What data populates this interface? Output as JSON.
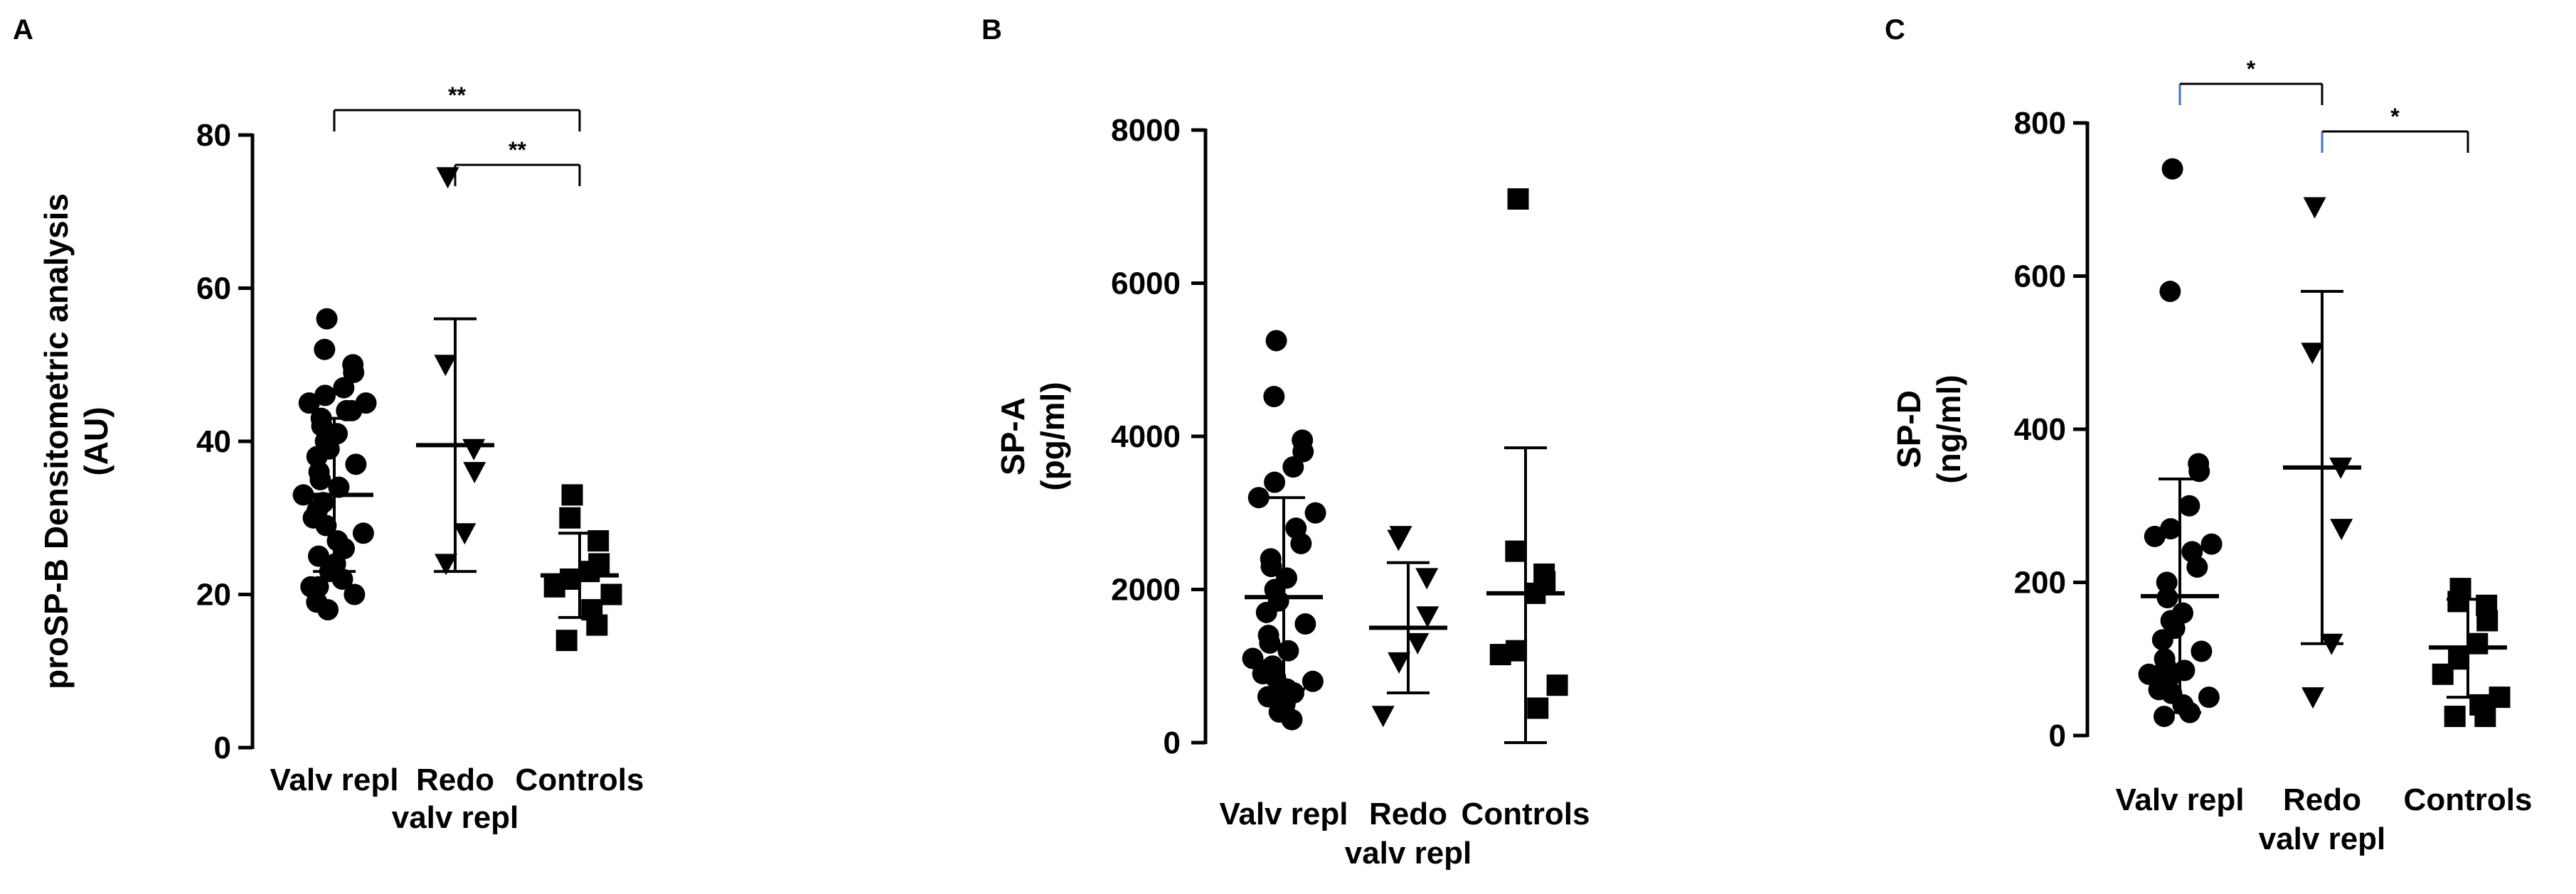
{
  "chart_data": [
    {
      "panel": "A",
      "type": "scatter",
      "ylabel_lines": [
        "proSP-B Densitometric analysis",
        "(AU)"
      ],
      "ylim": [
        0,
        80
      ],
      "yticks": [
        0,
        20,
        40,
        60,
        80
      ],
      "categories": [
        {
          "label_lines": [
            "Valv repl"
          ],
          "marker": "circle",
          "values": [
            56,
            52,
            50,
            49,
            47,
            46,
            45,
            45,
            44,
            44,
            43,
            42,
            41,
            40,
            39,
            38,
            37,
            36,
            35,
            34,
            33,
            32,
            31,
            30,
            29,
            28,
            27,
            26,
            25,
            24,
            23,
            22,
            21,
            21,
            20,
            19,
            18
          ],
          "mean": 33,
          "sd_low": 23,
          "sd_high": 43
        },
        {
          "label_lines": [
            "Redo",
            "valv repl"
          ],
          "marker": "triangle-down",
          "values": [
            74.5,
            50,
            39,
            36,
            28,
            24
          ],
          "mean": 39.5,
          "sd_low": 23,
          "sd_high": 56
        },
        {
          "label_lines": [
            "Controls"
          ],
          "marker": "square",
          "values": [
            33,
            30,
            27,
            24,
            23,
            22,
            21,
            20,
            18,
            16,
            14
          ],
          "mean": 22.5,
          "sd_low": 17,
          "sd_high": 28
        }
      ],
      "significance": [
        {
          "from": 0,
          "to": 2,
          "label": "**"
        },
        {
          "from": 1,
          "to": 2,
          "label": "**"
        }
      ]
    },
    {
      "panel": "B",
      "type": "scatter",
      "ylabel_lines": [
        "SP-A",
        "(pg/ml)"
      ],
      "ylim": [
        0,
        8000
      ],
      "yticks": [
        0,
        2000,
        4000,
        6000,
        8000
      ],
      "categories": [
        {
          "label_lines": [
            "Valv repl"
          ],
          "marker": "circle",
          "values": [
            5250,
            4520,
            3950,
            3800,
            3600,
            3400,
            3200,
            3000,
            2800,
            2600,
            2400,
            2300,
            2150,
            2000,
            1850,
            1700,
            1550,
            1400,
            1300,
            1200,
            1100,
            1000,
            950,
            900,
            850,
            800,
            700,
            650,
            600,
            500,
            400,
            300
          ],
          "mean": 1900,
          "sd_low": 700,
          "sd_high": 3200
        },
        {
          "label_lines": [
            "Redo",
            "valv repl"
          ],
          "marker": "triangle-down",
          "values": [
            2700,
            2650,
            2150,
            1650,
            1300,
            1050,
            350
          ],
          "mean": 1500,
          "sd_low": 650,
          "sd_high": 2350
        },
        {
          "label_lines": [
            "Controls"
          ],
          "marker": "square",
          "values": [
            7100,
            2500,
            2200,
            2100,
            1950,
            1200,
            1150,
            750,
            450
          ],
          "mean": 1950,
          "sd_low": 0,
          "sd_high": 3850
        }
      ],
      "significance": []
    },
    {
      "panel": "C",
      "type": "scatter",
      "ylabel_lines": [
        "SP-D",
        "(ng/ml)"
      ],
      "ylim": [
        0,
        800
      ],
      "yticks": [
        0,
        200,
        400,
        600,
        800
      ],
      "categories": [
        {
          "label_lines": [
            "Valv repl"
          ],
          "marker": "circle",
          "values": [
            740,
            580,
            355,
            345,
            300,
            270,
            260,
            250,
            240,
            220,
            200,
            180,
            160,
            150,
            140,
            125,
            110,
            100,
            90,
            85,
            80,
            75,
            70,
            60,
            55,
            50,
            40,
            30,
            25
          ],
          "mean": 182,
          "sd_low": 30,
          "sd_high": 335
        },
        {
          "label_lines": [
            "Redo",
            "valv repl"
          ],
          "marker": "triangle-down",
          "values": [
            690,
            500,
            350,
            270,
            120,
            50
          ],
          "mean": 350,
          "sd_low": 120,
          "sd_high": 580
        },
        {
          "label_lines": [
            "Controls"
          ],
          "marker": "square",
          "values": [
            192,
            175,
            170,
            150,
            120,
            100,
            80,
            50,
            40,
            25,
            25
          ],
          "mean": 115,
          "sd_low": 50,
          "sd_high": 178
        }
      ],
      "significance": [
        {
          "from": 0,
          "to": 1,
          "label": "*"
        },
        {
          "from": 1,
          "to": 2,
          "label": "*"
        }
      ]
    }
  ]
}
